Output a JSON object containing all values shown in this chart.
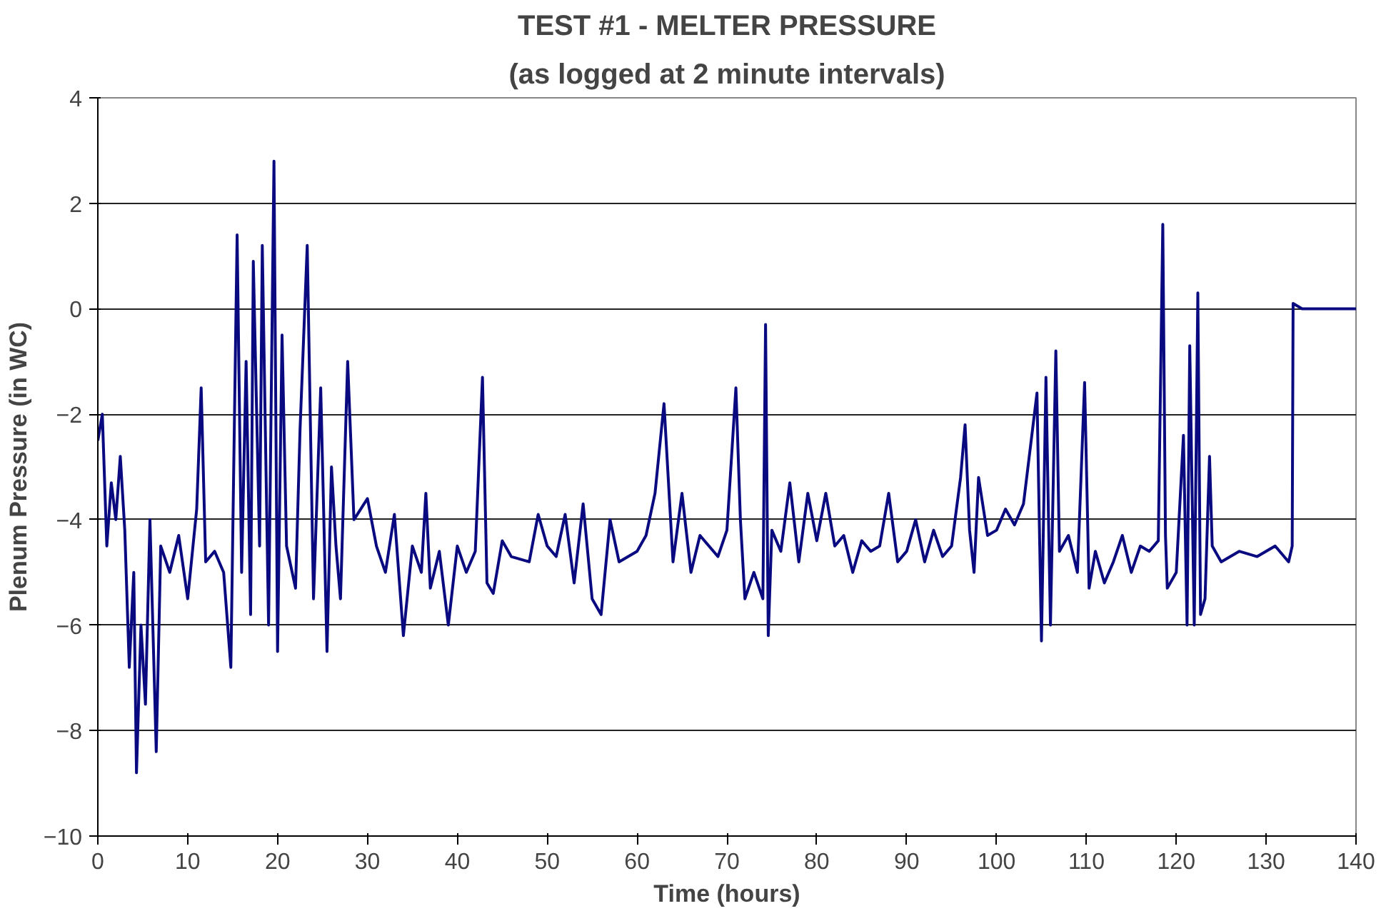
{
  "chart_data": {
    "type": "line",
    "title": "TEST #1 - MELTER PRESSURE",
    "subtitle": "(as logged at 2 minute intervals)",
    "xlabel": "Time (hours)",
    "ylabel": "Plenum Pressure (in WC)",
    "x": [
      0,
      0.5,
      1,
      1.5,
      2,
      2.5,
      3,
      3.5,
      4,
      4.3,
      4.8,
      5.3,
      5.8,
      6.5,
      7,
      8,
      9,
      10,
      11,
      11.5,
      12,
      13,
      14,
      14.8,
      15.5,
      16,
      16.5,
      17,
      17.3,
      18,
      18.3,
      19,
      19.6,
      20,
      20.5,
      21,
      22,
      22.5,
      23.3,
      24,
      24.8,
      25.5,
      26,
      26.5,
      27,
      27.8,
      28.5,
      30,
      31,
      32,
      33,
      34,
      35,
      36,
      36.5,
      37,
      38,
      39,
      40,
      41,
      42,
      42.8,
      43.3,
      44,
      45,
      46,
      48,
      49,
      50,
      51,
      52,
      53,
      54,
      55,
      56,
      57,
      58,
      60,
      61,
      62,
      63,
      64,
      65,
      66,
      67,
      69,
      70,
      71,
      71.5,
      72,
      73,
      74,
      74.3,
      74.6,
      75,
      76,
      77,
      78,
      79,
      80,
      81,
      82,
      83,
      84,
      85,
      86,
      87,
      88,
      89,
      90,
      91,
      92,
      93,
      94,
      95,
      96,
      96.5,
      97,
      97.5,
      98,
      99,
      100,
      101,
      102,
      103,
      104.5,
      105,
      105.5,
      106,
      106.6,
      107,
      108,
      109,
      109.8,
      110.3,
      111,
      112,
      113,
      114,
      115,
      116,
      117,
      118,
      118.5,
      118.8,
      119,
      120,
      120.8,
      121.2,
      121.5,
      122,
      122.4,
      122.7,
      123.2,
      123.7,
      124,
      125,
      127,
      129,
      131,
      132.5,
      132.9,
      133,
      134,
      136,
      138,
      140
    ],
    "series": [
      {
        "color": "#0a0a80",
        "values": [
          -2.5,
          -2.0,
          -4.5,
          -3.3,
          -4.0,
          -2.8,
          -4.2,
          -6.8,
          -5.0,
          -8.8,
          -6.0,
          -7.5,
          -4.0,
          -8.4,
          -4.5,
          -5.0,
          -4.3,
          -5.5,
          -3.8,
          -1.5,
          -4.8,
          -4.6,
          -5.0,
          -6.8,
          1.4,
          -5.0,
          -1.0,
          -5.8,
          0.9,
          -4.5,
          1.2,
          -6.0,
          2.8,
          -6.5,
          -0.5,
          -4.5,
          -5.3,
          -2.3,
          1.2,
          -5.5,
          -1.5,
          -6.5,
          -3.0,
          -4.5,
          -5.5,
          -1.0,
          -4.0,
          -3.6,
          -4.5,
          -5.0,
          -3.9,
          -6.2,
          -4.5,
          -5.0,
          -3.5,
          -5.3,
          -4.6,
          -6.0,
          -4.5,
          -5.0,
          -4.6,
          -1.3,
          -5.2,
          -5.4,
          -4.4,
          -4.7,
          -4.8,
          -3.9,
          -4.5,
          -4.7,
          -3.9,
          -5.2,
          -3.7,
          -5.5,
          -5.8,
          -4.0,
          -4.8,
          -4.6,
          -4.3,
          -3.5,
          -1.8,
          -4.8,
          -3.5,
          -5.0,
          -4.3,
          -4.7,
          -4.2,
          -1.5,
          -4.0,
          -5.5,
          -5.0,
          -5.5,
          -0.3,
          -6.2,
          -4.2,
          -4.6,
          -3.3,
          -4.8,
          -3.5,
          -4.4,
          -3.5,
          -4.5,
          -4.3,
          -5.0,
          -4.4,
          -4.6,
          -4.5,
          -3.5,
          -4.8,
          -4.6,
          -4.0,
          -4.8,
          -4.2,
          -4.7,
          -4.5,
          -3.2,
          -2.2,
          -4.2,
          -5.0,
          -3.2,
          -4.3,
          -4.2,
          -3.8,
          -4.1,
          -3.7,
          -1.6,
          -6.3,
          -1.3,
          -6.0,
          -0.8,
          -4.6,
          -4.3,
          -5.0,
          -1.4,
          -5.3,
          -4.6,
          -5.2,
          -4.8,
          -4.3,
          -5.0,
          -4.5,
          -4.6,
          -4.4,
          1.6,
          -4.3,
          -5.3,
          -5.0,
          -2.4,
          -6.0,
          -0.7,
          -6.0,
          0.3,
          -5.8,
          -5.5,
          -2.8,
          -4.5,
          -4.8,
          -4.6,
          -4.7,
          -4.5,
          -4.8,
          -4.5,
          0.1,
          0.0,
          0.0,
          0.0,
          0.0
        ]
      }
    ],
    "xlim": [
      0,
      140
    ],
    "xticks": [
      0,
      10,
      20,
      30,
      40,
      50,
      60,
      70,
      80,
      90,
      100,
      110,
      120,
      130,
      140
    ],
    "ylim": [
      -10,
      4
    ],
    "yticks": [
      -10,
      -8,
      -6,
      -4,
      -2,
      0,
      2,
      4
    ],
    "grid": "y",
    "marker": "none",
    "line_style": "solid"
  }
}
